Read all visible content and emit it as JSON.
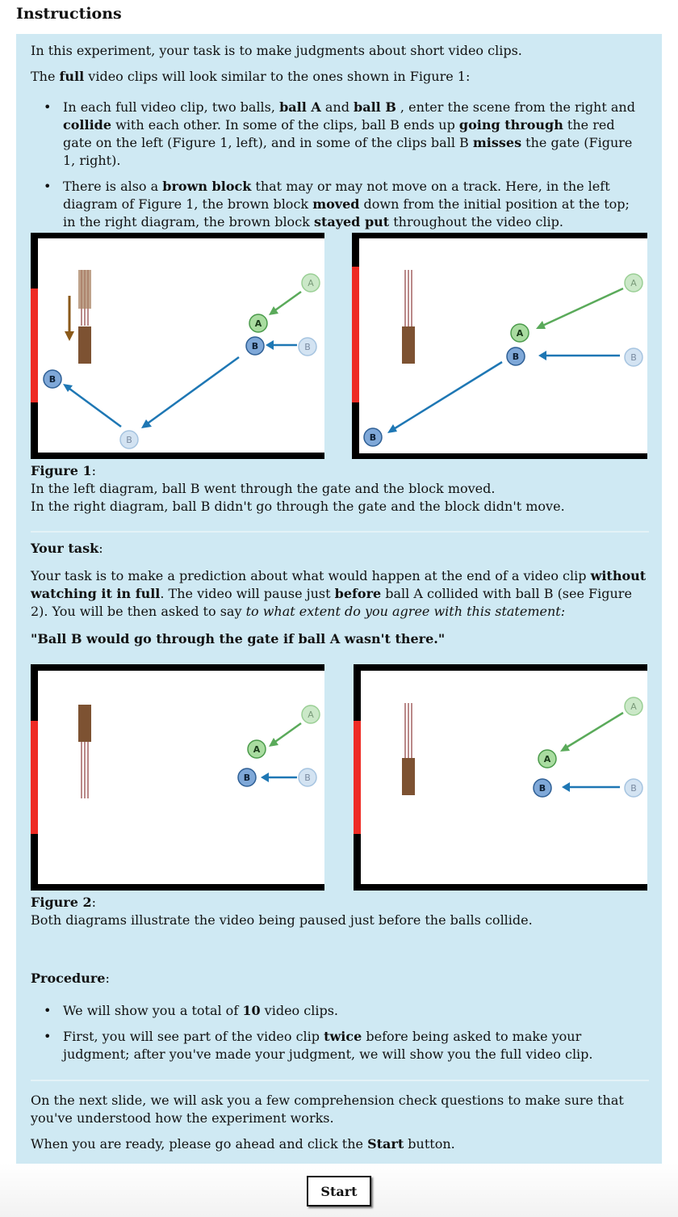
{
  "page": {
    "title": "Instructions",
    "intro": "In this experiment, your task is to make judgments about short video clips.",
    "full_line": {
      "pre": "The ",
      "bold": "full",
      "post": " video clips will look similar to the ones shown in Figure 1:"
    },
    "bullet1": {
      "p1": "In each full video clip, two balls, ",
      "b1": "ball A",
      "p2": " and ",
      "b2": "ball B",
      "p3": " , enter the scene from the right and ",
      "b3": "collide",
      "p4": " with each other. In some of the clips, ball B ends up ",
      "b4": "going through",
      "p5": " the red gate on the left (Figure 1, left), and in some of the clips ball B ",
      "b5": "misses",
      "p6": " the gate (Figure 1, right)."
    },
    "bullet2": {
      "p1": "There is also a ",
      "b1": "brown block",
      "p2": " that may or may not move on a track. Here, in the left diagram of Figure 1, the brown block ",
      "b2": "moved",
      "p3": " down from the initial position at the top; in the right diagram, the brown block ",
      "b3": "stayed put",
      "p4": " throughout the video clip."
    },
    "figure1": {
      "label": "Figure 1",
      "colon": ":",
      "line1": "In the left diagram, ball B went through the gate and the block moved.",
      "line2": "In the right diagram, ball B didn't go through the gate and the block didn't move."
    },
    "task": {
      "heading": "Your task",
      "colon": ":",
      "p1": "Your task is to make a prediction about what would happen at the end of a video clip ",
      "b1": "without watching it in full",
      "p2": ". The video will pause just ",
      "b2": "before",
      "p3": " ball A collided with ball B (see Figure 2). You will be then asked to say ",
      "i1": "to what extent do you agree with this statement:",
      "statement": "\"Ball B would go through the gate if ball A wasn't there.\""
    },
    "figure2": {
      "label": "Figure 2",
      "colon": ":",
      "line1": "Both diagrams illustrate the video being paused just before the balls collide."
    },
    "procedure": {
      "heading": "Procedure",
      "colon": ":",
      "item1_pre": "We will show you a total of ",
      "item1_bold": "10",
      "item1_post": " video clips.",
      "item2_pre": "First, you will see part of the video clip ",
      "item2_bold": "twice",
      "item2_post": " before being asked to make your judgment; after you've made your judgment, we will show you the full video clip."
    },
    "closing1": "On the next slide, we will ask you a few comprehension check questions to make sure that you've understood how the experiment works.",
    "closing2": {
      "pre": "When you are ready, please go ahead and click the ",
      "bold": "Start",
      "post": " button."
    },
    "start_label": "Start"
  },
  "diagram": {
    "ball_a_label": "A",
    "ball_b_label": "B",
    "colors": {
      "gate": "#ee2b24",
      "block": "#7d5232",
      "ball_a": "#5aaa5a",
      "ball_b": "#2e74b5",
      "arrow_a": "#5aaa5a",
      "arrow_b": "#1e77b4",
      "panel_bg": "#cfe9f3"
    }
  }
}
